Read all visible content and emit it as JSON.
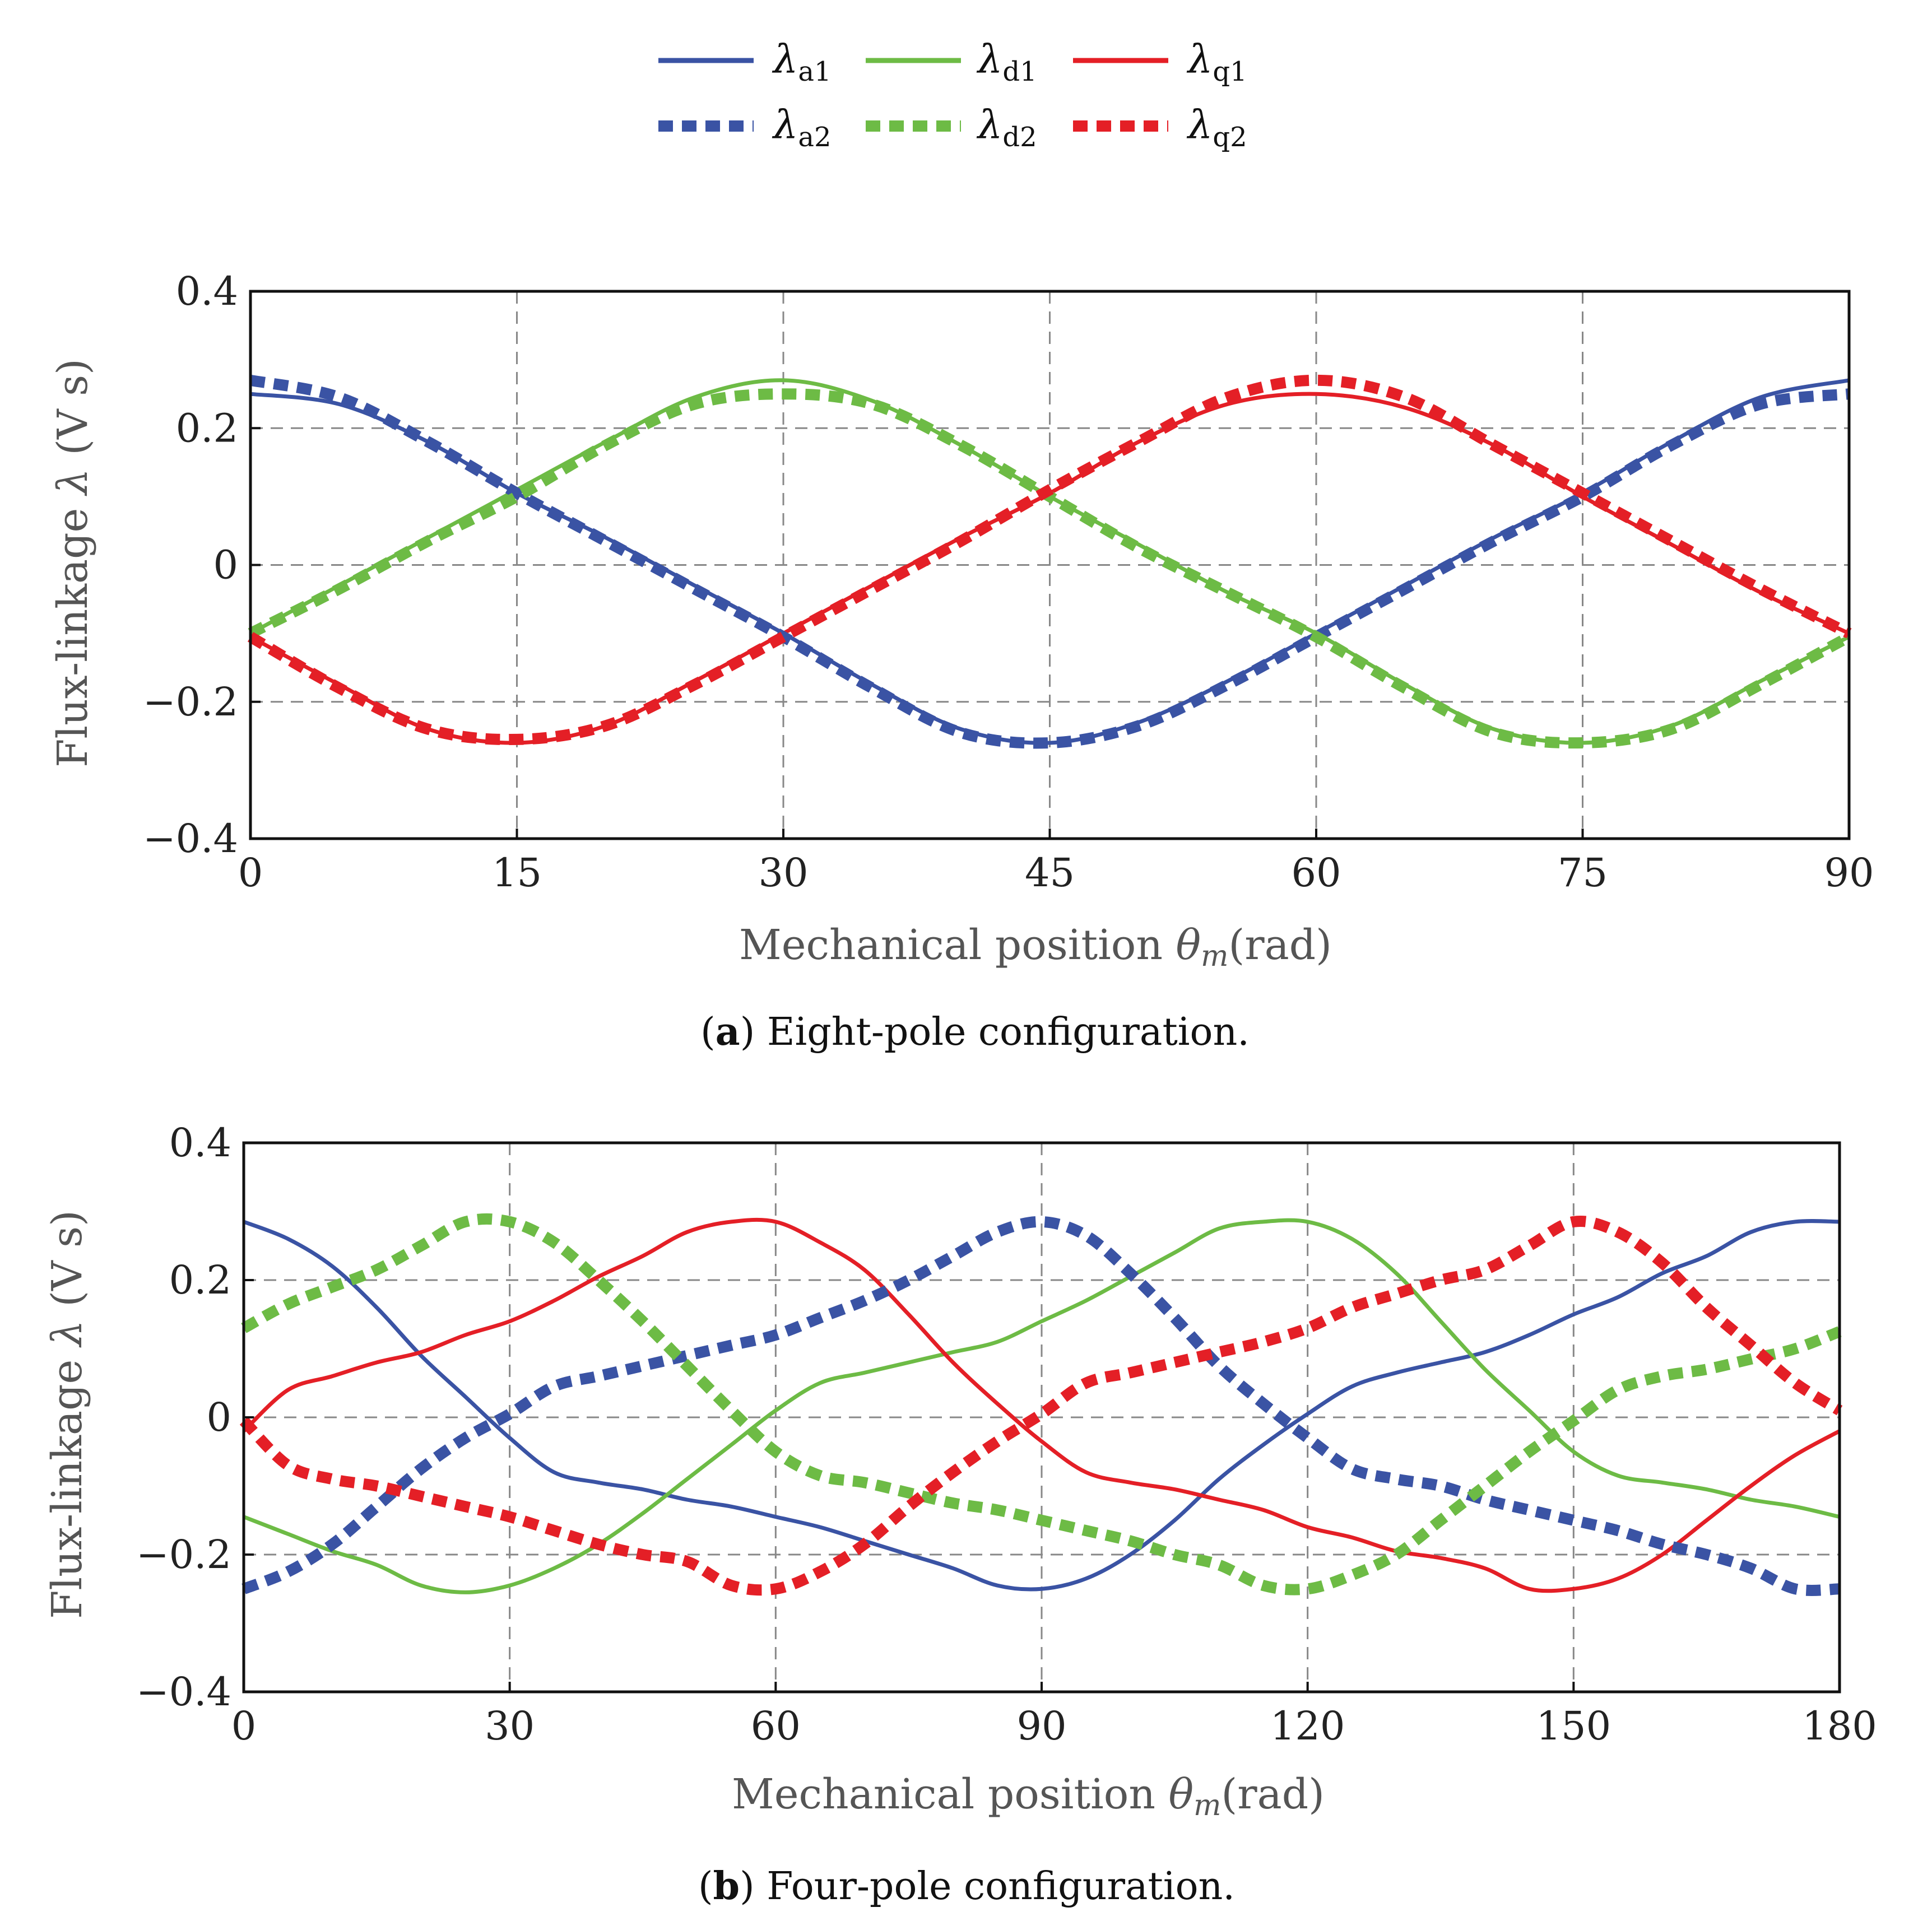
{
  "legend": {
    "entries": [
      {
        "id": "a1",
        "sym": "λ",
        "sub": "a1",
        "color": "#3a53a4",
        "dashed": false
      },
      {
        "id": "d1",
        "sym": "λ",
        "sub": "d1",
        "color": "#6dbb45",
        "dashed": false
      },
      {
        "id": "q1",
        "sym": "λ",
        "sub": "q1",
        "color": "#e41f26",
        "dashed": false
      },
      {
        "id": "a2",
        "sym": "λ",
        "sub": "a2",
        "color": "#3a53a4",
        "dashed": true
      },
      {
        "id": "d2",
        "sym": "λ",
        "sub": "d2",
        "color": "#6dbb45",
        "dashed": true
      },
      {
        "id": "q2",
        "sym": "λ",
        "sub": "q2",
        "color": "#e41f26",
        "dashed": true
      }
    ]
  },
  "chart_data": [
    {
      "type": "line",
      "panel": "a",
      "caption_letter": "a",
      "caption_text": " Eight-pole configuration.",
      "xlabel": "Mechanical position θm(rad)",
      "xlabel_main": "Mechanical position ",
      "xlabel_sym": "θ",
      "xlabel_sub": "m",
      "xlabel_unit": "(rad)",
      "ylabel": "Flux-linkage λ (V s)",
      "ylabel_pre": "Flux-linkage ",
      "ylabel_sym": "λ",
      "ylabel_unit": " (V s)",
      "xlim": [
        0,
        90
      ],
      "ylim": [
        -0.4,
        0.4
      ],
      "xticks": [
        0,
        15,
        30,
        45,
        60,
        75,
        90
      ],
      "xtick_labels": [
        "0",
        "15",
        "30",
        "45",
        "60",
        "75",
        "90"
      ],
      "yticks": [
        -0.4,
        -0.2,
        0,
        0.2,
        0.4
      ],
      "ytick_labels": [
        "−0.4",
        "−0.2",
        "0",
        "0.2",
        "0.4"
      ],
      "grid": true,
      "series": [
        {
          "name": "λa1",
          "color": "#3a53a4",
          "dashed": false,
          "x": [
            0,
            5,
            10,
            15,
            20,
            25,
            30,
            35,
            40,
            45,
            50,
            55,
            60,
            65,
            70,
            75,
            80,
            85,
            90
          ],
          "values": [
            0.25,
            0.235,
            0.18,
            0.105,
            0.04,
            -0.03,
            -0.1,
            -0.175,
            -0.24,
            -0.26,
            -0.23,
            -0.17,
            -0.1,
            -0.03,
            0.04,
            0.105,
            0.18,
            0.245,
            0.27
          ]
        },
        {
          "name": "λd1",
          "color": "#6dbb45",
          "dashed": false,
          "x": [
            0,
            5,
            10,
            15,
            20,
            25,
            30,
            35,
            40,
            45,
            50,
            55,
            60,
            65,
            70,
            75,
            80,
            85,
            90
          ],
          "values": [
            -0.1,
            -0.03,
            0.04,
            0.11,
            0.18,
            0.245,
            0.27,
            0.24,
            0.175,
            0.1,
            0.03,
            -0.04,
            -0.1,
            -0.175,
            -0.24,
            -0.26,
            -0.235,
            -0.17,
            -0.105
          ]
        },
        {
          "name": "λq1",
          "color": "#e41f26",
          "dashed": false,
          "x": [
            0,
            5,
            10,
            15,
            20,
            25,
            30,
            35,
            40,
            45,
            50,
            55,
            60,
            65,
            70,
            75,
            80,
            85,
            90
          ],
          "values": [
            -0.105,
            -0.175,
            -0.24,
            -0.26,
            -0.235,
            -0.17,
            -0.1,
            -0.03,
            0.04,
            0.105,
            0.18,
            0.235,
            0.25,
            0.23,
            0.175,
            0.1,
            0.03,
            -0.04,
            -0.1
          ]
        },
        {
          "name": "λa2",
          "color": "#3a53a4",
          "dashed": true,
          "x": [
            0,
            5,
            10,
            15,
            20,
            25,
            30,
            35,
            40,
            45,
            50,
            55,
            60,
            65,
            70,
            75,
            80,
            85,
            90
          ],
          "values": [
            0.27,
            0.245,
            0.18,
            0.105,
            0.035,
            -0.035,
            -0.105,
            -0.18,
            -0.245,
            -0.26,
            -0.235,
            -0.175,
            -0.105,
            -0.035,
            0.035,
            0.1,
            0.175,
            0.235,
            0.25
          ]
        },
        {
          "name": "λd2",
          "color": "#6dbb45",
          "dashed": true,
          "x": [
            0,
            5,
            10,
            15,
            20,
            25,
            30,
            35,
            40,
            45,
            50,
            55,
            60,
            65,
            70,
            75,
            80,
            85,
            90
          ],
          "values": [
            -0.1,
            -0.035,
            0.035,
            0.1,
            0.175,
            0.235,
            0.25,
            0.235,
            0.175,
            0.1,
            0.025,
            -0.04,
            -0.105,
            -0.18,
            -0.245,
            -0.26,
            -0.24,
            -0.175,
            -0.105
          ]
        },
        {
          "name": "λq2",
          "color": "#e41f26",
          "dashed": true,
          "x": [
            0,
            5,
            10,
            15,
            20,
            25,
            30,
            35,
            40,
            45,
            50,
            55,
            60,
            65,
            70,
            75,
            80,
            85,
            90
          ],
          "values": [
            -0.105,
            -0.18,
            -0.24,
            -0.255,
            -0.235,
            -0.175,
            -0.105,
            -0.035,
            0.035,
            0.11,
            0.18,
            0.245,
            0.27,
            0.245,
            0.175,
            0.105,
            0.035,
            -0.035,
            -0.1
          ]
        }
      ]
    },
    {
      "type": "line",
      "panel": "b",
      "caption_letter": "b",
      "caption_text": " Four-pole configuration.",
      "xlabel": "Mechanical position θm(rad)",
      "xlabel_main": "Mechanical position ",
      "xlabel_sym": "θ",
      "xlabel_sub": "m",
      "xlabel_unit": "(rad)",
      "ylabel": "Flux-linkage λ (V s)",
      "ylabel_pre": "Flux-linkage ",
      "ylabel_sym": "λ",
      "ylabel_unit": " (V s)",
      "xlim": [
        0,
        180
      ],
      "ylim": [
        -0.4,
        0.4
      ],
      "xticks": [
        0,
        30,
        60,
        90,
        120,
        150,
        180
      ],
      "xtick_labels": [
        "0",
        "30",
        "60",
        "90",
        "120",
        "150",
        "180"
      ],
      "yticks": [
        -0.4,
        -0.2,
        0,
        0.2,
        0.4
      ],
      "ytick_labels": [
        "−0.4",
        "−0.2",
        "0",
        "0.2",
        "0.4"
      ],
      "grid": true,
      "series": [
        {
          "name": "λa1",
          "color": "#3a53a4",
          "dashed": false,
          "x": [
            0,
            5,
            10,
            15,
            20,
            25,
            30,
            35,
            40,
            45,
            50,
            55,
            60,
            65,
            70,
            75,
            80,
            85,
            90,
            95,
            100,
            105,
            110,
            115,
            120,
            125,
            130,
            135,
            140,
            145,
            150,
            155,
            160,
            165,
            170,
            175,
            180
          ],
          "values": [
            0.285,
            0.26,
            0.22,
            0.16,
            0.09,
            0.03,
            -0.03,
            -0.08,
            -0.095,
            -0.105,
            -0.12,
            -0.13,
            -0.145,
            -0.16,
            -0.18,
            -0.2,
            -0.22,
            -0.245,
            -0.25,
            -0.235,
            -0.2,
            -0.15,
            -0.09,
            -0.04,
            0.005,
            0.045,
            0.065,
            0.08,
            0.095,
            0.12,
            0.15,
            0.175,
            0.21,
            0.235,
            0.27,
            0.285,
            0.285
          ]
        },
        {
          "name": "λd1",
          "color": "#6dbb45",
          "dashed": false,
          "x": [
            0,
            5,
            10,
            15,
            20,
            25,
            30,
            35,
            40,
            45,
            50,
            55,
            60,
            65,
            70,
            75,
            80,
            85,
            90,
            95,
            100,
            105,
            110,
            115,
            120,
            125,
            130,
            135,
            140,
            145,
            150,
            155,
            160,
            165,
            170,
            175,
            180
          ],
          "values": [
            -0.145,
            -0.17,
            -0.195,
            -0.215,
            -0.245,
            -0.255,
            -0.245,
            -0.22,
            -0.185,
            -0.14,
            -0.09,
            -0.04,
            0.01,
            0.05,
            0.065,
            0.08,
            0.095,
            0.11,
            0.14,
            0.17,
            0.205,
            0.24,
            0.275,
            0.285,
            0.285,
            0.26,
            0.21,
            0.14,
            0.07,
            0.01,
            -0.05,
            -0.085,
            -0.095,
            -0.105,
            -0.12,
            -0.13,
            -0.145
          ]
        },
        {
          "name": "λq1",
          "color": "#e41f26",
          "dashed": false,
          "x": [
            0,
            5,
            10,
            15,
            20,
            25,
            30,
            35,
            40,
            45,
            50,
            55,
            60,
            65,
            70,
            75,
            80,
            85,
            90,
            95,
            100,
            105,
            110,
            115,
            120,
            125,
            130,
            135,
            140,
            145,
            150,
            155,
            160,
            165,
            170,
            175,
            180
          ],
          "values": [
            -0.02,
            0.04,
            0.06,
            0.08,
            0.095,
            0.12,
            0.14,
            0.17,
            0.205,
            0.235,
            0.27,
            0.285,
            0.285,
            0.255,
            0.215,
            0.15,
            0.08,
            0.02,
            -0.035,
            -0.08,
            -0.095,
            -0.105,
            -0.12,
            -0.135,
            -0.16,
            -0.175,
            -0.195,
            -0.205,
            -0.22,
            -0.25,
            -0.25,
            -0.235,
            -0.2,
            -0.15,
            -0.1,
            -0.055,
            -0.02
          ]
        },
        {
          "name": "λa2",
          "color": "#3a53a4",
          "dashed": true,
          "x": [
            0,
            5,
            10,
            15,
            20,
            25,
            30,
            35,
            40,
            45,
            50,
            55,
            60,
            65,
            70,
            75,
            80,
            85,
            90,
            95,
            100,
            105,
            110,
            115,
            120,
            125,
            130,
            135,
            140,
            145,
            150,
            155,
            160,
            165,
            170,
            175,
            180
          ],
          "values": [
            -0.25,
            -0.225,
            -0.185,
            -0.13,
            -0.075,
            -0.03,
            0.005,
            0.045,
            0.06,
            0.075,
            0.09,
            0.105,
            0.12,
            0.145,
            0.17,
            0.2,
            0.235,
            0.27,
            0.285,
            0.265,
            0.21,
            0.145,
            0.075,
            0.02,
            -0.03,
            -0.075,
            -0.09,
            -0.1,
            -0.12,
            -0.135,
            -0.15,
            -0.165,
            -0.185,
            -0.2,
            -0.22,
            -0.25,
            -0.25
          ]
        },
        {
          "name": "λd2",
          "color": "#6dbb45",
          "dashed": true,
          "x": [
            0,
            5,
            10,
            15,
            20,
            25,
            30,
            35,
            40,
            45,
            50,
            55,
            60,
            65,
            70,
            75,
            80,
            85,
            90,
            95,
            100,
            105,
            110,
            115,
            120,
            125,
            130,
            135,
            140,
            145,
            150,
            155,
            160,
            165,
            170,
            175,
            180
          ],
          "values": [
            0.13,
            0.165,
            0.19,
            0.215,
            0.25,
            0.285,
            0.285,
            0.255,
            0.2,
            0.14,
            0.075,
            0.01,
            -0.05,
            -0.085,
            -0.095,
            -0.11,
            -0.125,
            -0.135,
            -0.15,
            -0.165,
            -0.18,
            -0.2,
            -0.215,
            -0.245,
            -0.25,
            -0.23,
            -0.2,
            -0.15,
            -0.1,
            -0.05,
            -0.005,
            0.04,
            0.06,
            0.07,
            0.085,
            0.1,
            0.125
          ]
        },
        {
          "name": "λq2",
          "color": "#e41f26",
          "dashed": true,
          "x": [
            0,
            5,
            10,
            15,
            20,
            25,
            30,
            35,
            40,
            45,
            50,
            55,
            60,
            65,
            70,
            75,
            80,
            85,
            90,
            95,
            100,
            105,
            110,
            115,
            120,
            125,
            130,
            135,
            140,
            145,
            150,
            155,
            160,
            165,
            170,
            175,
            180
          ],
          "values": [
            -0.005,
            -0.07,
            -0.09,
            -0.1,
            -0.115,
            -0.13,
            -0.145,
            -0.165,
            -0.185,
            -0.2,
            -0.21,
            -0.245,
            -0.25,
            -0.225,
            -0.185,
            -0.13,
            -0.08,
            -0.035,
            0.005,
            0.05,
            0.065,
            0.08,
            0.095,
            0.11,
            0.13,
            0.16,
            0.18,
            0.2,
            0.215,
            0.25,
            0.285,
            0.27,
            0.225,
            0.16,
            0.105,
            0.05,
            0.01
          ]
        }
      ]
    }
  ]
}
